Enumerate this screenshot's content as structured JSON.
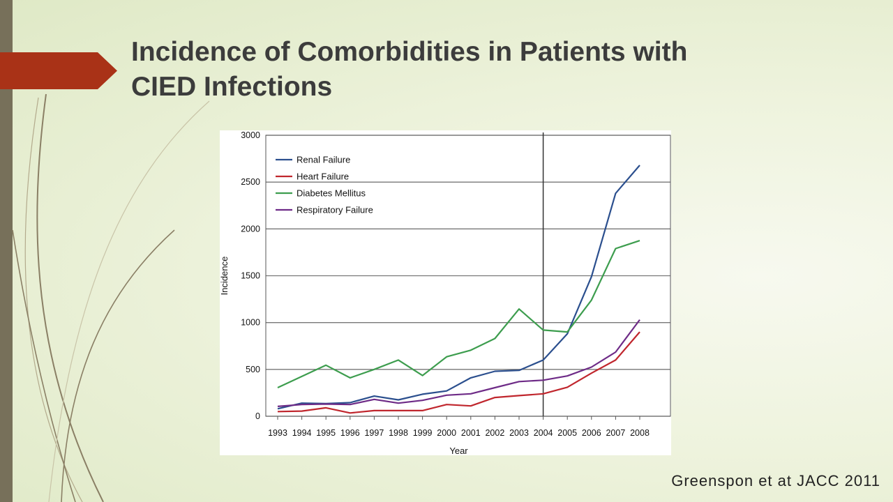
{
  "slide": {
    "title": "Incidence of Comorbidities in Patients with CIED Infections",
    "citation": "Greenspon et at JACC 2011",
    "accent_color": "#a93217",
    "sidebar_color": "#77705a"
  },
  "chart_data": {
    "type": "line",
    "title": "",
    "xlabel": "Year",
    "ylabel": "Incidence",
    "categories": [
      "1993",
      "1994",
      "1995",
      "1996",
      "1997",
      "1998",
      "1999",
      "2000",
      "2001",
      "2002",
      "2003",
      "2004",
      "2005",
      "2006",
      "2007",
      "2008"
    ],
    "ylim": [
      0,
      3000
    ],
    "yticks": [
      0,
      500,
      1000,
      1500,
      2000,
      2500,
      3000
    ],
    "grid": "horizontal",
    "legend_position": "top-left",
    "vertical_marker_at": "2004",
    "series": [
      {
        "name": "Renal Failure",
        "color": "#2b4f8e",
        "values": [
          80,
          140,
          135,
          145,
          215,
          175,
          235,
          270,
          410,
          480,
          490,
          600,
          880,
          1490,
          2380,
          2680
        ]
      },
      {
        "name": "Heart Failure",
        "color": "#c0262d",
        "values": [
          50,
          55,
          90,
          35,
          60,
          60,
          60,
          125,
          110,
          200,
          220,
          240,
          310,
          460,
          600,
          900
        ]
      },
      {
        "name": "Diabetes Mellitus",
        "color": "#3d9d4e",
        "values": [
          305,
          425,
          545,
          410,
          500,
          600,
          435,
          635,
          705,
          830,
          1145,
          920,
          900,
          1240,
          1790,
          1875
        ]
      },
      {
        "name": "Respiratory Failure",
        "color": "#6e2b87",
        "values": [
          105,
          125,
          130,
          125,
          180,
          140,
          170,
          225,
          240,
          305,
          370,
          385,
          430,
          525,
          685,
          1030
        ]
      }
    ]
  }
}
